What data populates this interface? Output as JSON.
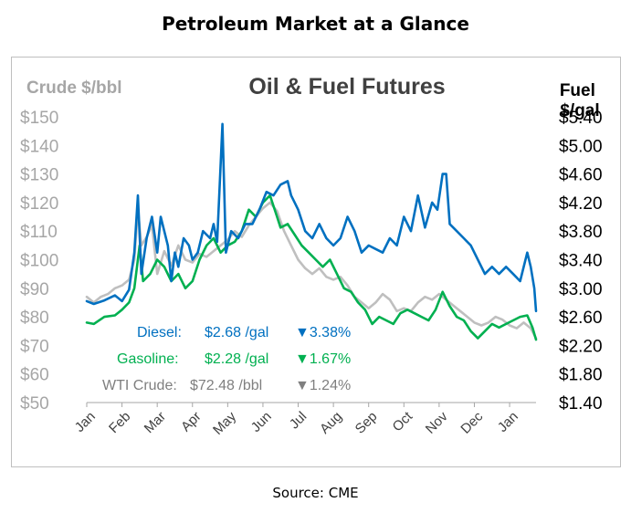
{
  "page_title": "Petroleum Market at a Glance",
  "source": "Source: CME",
  "chart_data": {
    "type": "line",
    "title": "Oil & Fuel Futures",
    "y_left_label": "Crude $/bbl",
    "y_right_label": "Fuel\n$/gal",
    "y_left_range": [
      50,
      150
    ],
    "y_left_ticks": [
      "$50",
      "$60",
      "$70",
      "$80",
      "$90",
      "$100",
      "$110",
      "$120",
      "$130",
      "$140",
      "$150"
    ],
    "y_right_range": [
      1.4,
      5.4
    ],
    "y_right_ticks": [
      "$1.40",
      "$1.80",
      "$2.20",
      "$2.60",
      "$3.00",
      "$3.40",
      "$3.80",
      "$4.20",
      "$4.60",
      "$5.00",
      "$5.40"
    ],
    "x_range": [
      0,
      12.75
    ],
    "x_ticks": [
      "Jan",
      "Feb",
      "Mar",
      "Apr",
      "May",
      "Jun",
      "Jul",
      "Aug",
      "Sep",
      "Oct",
      "Nov",
      "Dec",
      "Jan"
    ],
    "gridlines": false,
    "colors": {
      "diesel": "#0070c0",
      "gasoline": "#00b050",
      "wti": "#bfbfbf",
      "axis_text": "#a6a6a6"
    },
    "series": [
      {
        "name": "Diesel",
        "axis": "right",
        "color": "#0070c0",
        "points": [
          [
            0,
            2.82
          ],
          [
            0.2,
            2.78
          ],
          [
            0.5,
            2.83
          ],
          [
            0.8,
            2.9
          ],
          [
            1.0,
            2.82
          ],
          [
            1.2,
            2.98
          ],
          [
            1.35,
            3.5
          ],
          [
            1.45,
            4.3
          ],
          [
            1.55,
            3.2
          ],
          [
            1.7,
            3.7
          ],
          [
            1.85,
            4.0
          ],
          [
            2.0,
            3.5
          ],
          [
            2.1,
            4.0
          ],
          [
            2.3,
            3.6
          ],
          [
            2.4,
            3.1
          ],
          [
            2.5,
            3.5
          ],
          [
            2.6,
            3.3
          ],
          [
            2.75,
            3.7
          ],
          [
            2.9,
            3.6
          ],
          [
            3.0,
            3.4
          ],
          [
            3.15,
            3.5
          ],
          [
            3.3,
            3.8
          ],
          [
            3.5,
            3.7
          ],
          [
            3.6,
            3.9
          ],
          [
            3.7,
            3.65
          ],
          [
            3.85,
            5.3
          ],
          [
            3.95,
            3.5
          ],
          [
            4.1,
            3.8
          ],
          [
            4.3,
            3.7
          ],
          [
            4.5,
            3.9
          ],
          [
            4.7,
            3.9
          ],
          [
            4.9,
            4.1
          ],
          [
            5.1,
            4.35
          ],
          [
            5.3,
            4.3
          ],
          [
            5.5,
            4.45
          ],
          [
            5.7,
            4.5
          ],
          [
            5.8,
            4.3
          ],
          [
            5.9,
            4.2
          ],
          [
            6.0,
            4.1
          ],
          [
            6.2,
            3.8
          ],
          [
            6.4,
            3.7
          ],
          [
            6.6,
            3.9
          ],
          [
            6.8,
            3.7
          ],
          [
            7.0,
            3.6
          ],
          [
            7.2,
            3.7
          ],
          [
            7.4,
            4.0
          ],
          [
            7.6,
            3.8
          ],
          [
            7.8,
            3.5
          ],
          [
            8.0,
            3.6
          ],
          [
            8.2,
            3.55
          ],
          [
            8.4,
            3.5
          ],
          [
            8.6,
            3.7
          ],
          [
            8.8,
            3.6
          ],
          [
            9.0,
            4.0
          ],
          [
            9.2,
            3.8
          ],
          [
            9.4,
            4.3
          ],
          [
            9.6,
            3.85
          ],
          [
            9.8,
            4.2
          ],
          [
            9.95,
            4.1
          ],
          [
            10.1,
            4.6
          ],
          [
            10.2,
            4.6
          ],
          [
            10.3,
            3.9
          ],
          [
            10.5,
            3.8
          ],
          [
            10.7,
            3.7
          ],
          [
            10.9,
            3.6
          ],
          [
            11.1,
            3.4
          ],
          [
            11.3,
            3.2
          ],
          [
            11.5,
            3.3
          ],
          [
            11.7,
            3.2
          ],
          [
            11.9,
            3.3
          ],
          [
            12.1,
            3.2
          ],
          [
            12.3,
            3.1
          ],
          [
            12.5,
            3.5
          ],
          [
            12.6,
            3.3
          ],
          [
            12.7,
            3.0
          ],
          [
            12.75,
            2.68
          ]
        ]
      },
      {
        "name": "Gasoline",
        "axis": "right",
        "color": "#00b050",
        "points": [
          [
            0,
            2.52
          ],
          [
            0.2,
            2.5
          ],
          [
            0.5,
            2.6
          ],
          [
            0.8,
            2.62
          ],
          [
            1.0,
            2.7
          ],
          [
            1.2,
            2.8
          ],
          [
            1.35,
            3.0
          ],
          [
            1.5,
            3.6
          ],
          [
            1.6,
            3.1
          ],
          [
            1.8,
            3.2
          ],
          [
            2.0,
            3.4
          ],
          [
            2.2,
            3.3
          ],
          [
            2.4,
            3.1
          ],
          [
            2.6,
            3.2
          ],
          [
            2.8,
            3.0
          ],
          [
            3.0,
            3.1
          ],
          [
            3.2,
            3.4
          ],
          [
            3.4,
            3.6
          ],
          [
            3.6,
            3.7
          ],
          [
            3.8,
            3.5
          ],
          [
            4.0,
            3.6
          ],
          [
            4.2,
            3.65
          ],
          [
            4.4,
            3.8
          ],
          [
            4.6,
            4.1
          ],
          [
            4.8,
            4.0
          ],
          [
            5.0,
            4.2
          ],
          [
            5.2,
            4.3
          ],
          [
            5.4,
            4.0
          ],
          [
            5.5,
            3.85
          ],
          [
            5.7,
            3.9
          ],
          [
            5.9,
            3.75
          ],
          [
            6.1,
            3.6
          ],
          [
            6.3,
            3.5
          ],
          [
            6.5,
            3.4
          ],
          [
            6.7,
            3.3
          ],
          [
            6.9,
            3.4
          ],
          [
            7.1,
            3.2
          ],
          [
            7.3,
            3.0
          ],
          [
            7.5,
            2.95
          ],
          [
            7.7,
            2.8
          ],
          [
            7.9,
            2.7
          ],
          [
            8.1,
            2.5
          ],
          [
            8.3,
            2.6
          ],
          [
            8.5,
            2.55
          ],
          [
            8.7,
            2.5
          ],
          [
            8.9,
            2.65
          ],
          [
            9.1,
            2.7
          ],
          [
            9.3,
            2.65
          ],
          [
            9.5,
            2.6
          ],
          [
            9.7,
            2.55
          ],
          [
            9.9,
            2.7
          ],
          [
            10.1,
            2.95
          ],
          [
            10.3,
            2.75
          ],
          [
            10.5,
            2.6
          ],
          [
            10.7,
            2.55
          ],
          [
            10.9,
            2.4
          ],
          [
            11.1,
            2.3
          ],
          [
            11.3,
            2.4
          ],
          [
            11.5,
            2.5
          ],
          [
            11.7,
            2.45
          ],
          [
            11.9,
            2.5
          ],
          [
            12.1,
            2.55
          ],
          [
            12.3,
            2.6
          ],
          [
            12.5,
            2.62
          ],
          [
            12.65,
            2.45
          ],
          [
            12.75,
            2.28
          ]
        ]
      },
      {
        "name": "WTI Crude",
        "axis": "left",
        "color": "#bfbfbf",
        "points": [
          [
            0,
            87
          ],
          [
            0.2,
            85
          ],
          [
            0.4,
            87
          ],
          [
            0.6,
            88
          ],
          [
            0.8,
            90
          ],
          [
            1.0,
            91
          ],
          [
            1.2,
            93
          ],
          [
            1.35,
            100
          ],
          [
            1.45,
            118
          ],
          [
            1.55,
            105
          ],
          [
            1.7,
            108
          ],
          [
            1.85,
            112
          ],
          [
            2.0,
            95
          ],
          [
            2.2,
            103
          ],
          [
            2.4,
            98
          ],
          [
            2.6,
            105
          ],
          [
            2.8,
            100
          ],
          [
            3.0,
            99
          ],
          [
            3.2,
            102
          ],
          [
            3.4,
            101
          ],
          [
            3.6,
            103
          ],
          [
            3.8,
            105
          ],
          [
            4.0,
            107
          ],
          [
            4.2,
            110
          ],
          [
            4.4,
            108
          ],
          [
            4.6,
            112
          ],
          [
            4.8,
            115
          ],
          [
            5.0,
            118
          ],
          [
            5.2,
            120
          ],
          [
            5.4,
            117
          ],
          [
            5.6,
            110
          ],
          [
            5.8,
            105
          ],
          [
            6.0,
            100
          ],
          [
            6.2,
            97
          ],
          [
            6.4,
            95
          ],
          [
            6.6,
            97
          ],
          [
            6.8,
            94
          ],
          [
            7.0,
            93
          ],
          [
            7.2,
            94
          ],
          [
            7.4,
            91
          ],
          [
            7.6,
            87
          ],
          [
            7.8,
            85
          ],
          [
            8.0,
            83
          ],
          [
            8.2,
            85
          ],
          [
            8.4,
            88
          ],
          [
            8.6,
            86
          ],
          [
            8.8,
            82
          ],
          [
            9.0,
            83
          ],
          [
            9.2,
            82
          ],
          [
            9.4,
            85
          ],
          [
            9.6,
            87
          ],
          [
            9.8,
            86
          ],
          [
            10.0,
            88
          ],
          [
            10.2,
            86
          ],
          [
            10.4,
            84
          ],
          [
            10.6,
            82
          ],
          [
            10.8,
            80
          ],
          [
            11.0,
            78
          ],
          [
            11.2,
            77
          ],
          [
            11.4,
            78
          ],
          [
            11.6,
            80
          ],
          [
            11.8,
            79
          ],
          [
            12.0,
            77
          ],
          [
            12.2,
            76
          ],
          [
            12.4,
            78
          ],
          [
            12.6,
            76
          ],
          [
            12.75,
            72.48
          ]
        ]
      }
    ],
    "annotations": {
      "diesel": {
        "label": "Diesel:",
        "value": "$2.68 /gal",
        "change": "▼3.38%"
      },
      "gasoline": {
        "label": "Gasoline:",
        "value": "$2.28 /gal",
        "change": "▼1.67%"
      },
      "wti": {
        "label": "WTI Crude:",
        "value": "$72.48 /bbl",
        "change": "▼1.24%"
      }
    }
  }
}
